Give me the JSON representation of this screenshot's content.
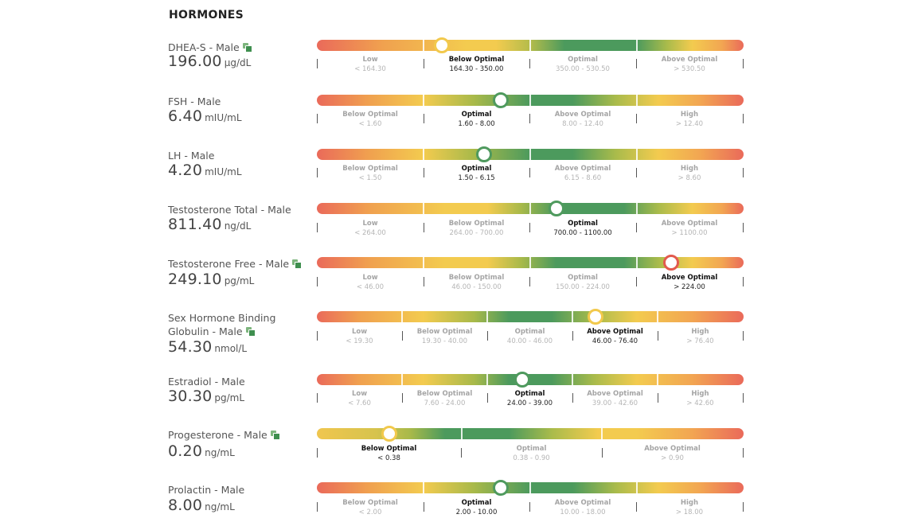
{
  "section": {
    "title": "HORMONES"
  },
  "rows": [
    {
      "name": "DHEA-S - Male",
      "value": "196.00",
      "unit": "µg/dL",
      "marker_fraction": 0.293,
      "segments": [
        {
          "label": "Low",
          "range": "< 164.30"
        },
        {
          "label": "Below Optimal",
          "range": "164.30 - 350.00",
          "active": true
        },
        {
          "label": "Optimal",
          "range": "350.00 - 530.50"
        },
        {
          "label": "Above Optimal",
          "range": "> 530.50"
        }
      ]
    },
    {
      "name": "FSH - Male",
      "value": "6.40",
      "unit": "mIU/mL",
      "marker_fraction": 0.43,
      "segments": [
        {
          "label": "Below Optimal",
          "range": "< 1.60"
        },
        {
          "label": "Optimal",
          "range": "1.60 - 8.00",
          "active": true
        },
        {
          "label": "Above Optimal",
          "range": "8.00 - 12.40"
        },
        {
          "label": "High",
          "range": "> 12.40"
        }
      ]
    },
    {
      "name": "LH - Male",
      "value": "4.20",
      "unit": "mIU/mL",
      "marker_fraction": 0.39,
      "segments": [
        {
          "label": "Below Optimal",
          "range": "< 1.50"
        },
        {
          "label": "Optimal",
          "range": "1.50 - 6.15",
          "active": true
        },
        {
          "label": "Above Optimal",
          "range": "6.15 - 8.60"
        },
        {
          "label": "High",
          "range": "> 8.60"
        }
      ]
    },
    {
      "name": "Testosterone Total - Male",
      "value": "811.40",
      "unit": "ng/dL",
      "marker_fraction": 0.56,
      "segments": [
        {
          "label": "Low",
          "range": "< 264.00"
        },
        {
          "label": "Below Optimal",
          "range": "264.00 - 700.00"
        },
        {
          "label": "Optimal",
          "range": "700.00 - 1100.00",
          "active": true
        },
        {
          "label": "Above Optimal",
          "range": "> 1100.00"
        }
      ]
    },
    {
      "name": "Testosterone Free - Male",
      "value": "249.10",
      "unit": "pg/mL",
      "marker_fraction": 0.83,
      "segments": [
        {
          "label": "Low",
          "range": "< 46.00"
        },
        {
          "label": "Below Optimal",
          "range": "46.00 - 150.00"
        },
        {
          "label": "Optimal",
          "range": "150.00 - 224.00"
        },
        {
          "label": "Above Optimal",
          "range": "> 224.00",
          "active": true
        }
      ]
    },
    {
      "name_line1": "Sex Hormone Binding",
      "name_line2": "Globulin - Male",
      "value": "54.30",
      "unit": "nmol/L",
      "marker_fraction": 0.655,
      "segments": [
        {
          "label": "Low",
          "range": "< 19.30"
        },
        {
          "label": "Below Optimal",
          "range": "19.30 - 40.00"
        },
        {
          "label": "Optimal",
          "range": "40.00 - 46.00"
        },
        {
          "label": "Above Optimal",
          "range": "46.00 - 76.40",
          "active": true
        },
        {
          "label": "High",
          "range": "> 76.40"
        }
      ]
    },
    {
      "name": "Estradiol - Male",
      "value": "30.30",
      "unit": "pg/mL",
      "marker_fraction": 0.48,
      "segments": [
        {
          "label": "Low",
          "range": "< 7.60"
        },
        {
          "label": "Below Optimal",
          "range": "7.60 - 24.00"
        },
        {
          "label": "Optimal",
          "range": "24.00 - 39.00",
          "active": true
        },
        {
          "label": "Above Optimal",
          "range": "39.00 - 42.60"
        },
        {
          "label": "High",
          "range": "> 42.60"
        }
      ]
    },
    {
      "name": "Progesterone - Male",
      "value": "0.20",
      "unit": "ng/mL",
      "marker_fraction": 0.17,
      "segments": [
        {
          "label": "Below Optimal",
          "range": "< 0.38",
          "active": true
        },
        {
          "label": "Optimal",
          "range": "0.38 - 0.90"
        },
        {
          "label": "Above Optimal",
          "range": "> 0.90"
        }
      ]
    },
    {
      "name": "Prolactin - Male",
      "value": "8.00",
      "unit": "ng/mL",
      "marker_fraction": 0.43,
      "segments": [
        {
          "label": "Below Optimal",
          "range": "< 2.00"
        },
        {
          "label": "Optimal",
          "range": "2.00 - 10.00",
          "active": true
        },
        {
          "label": "Above Optimal",
          "range": "10.00 - 18.00"
        },
        {
          "label": "High",
          "range": "> 18.00"
        }
      ]
    }
  ],
  "colors": {
    "red": "#ea6a5a",
    "orange": "#f0a04f",
    "yellow": "#f3cb4f",
    "green": "#4c9a5d"
  }
}
